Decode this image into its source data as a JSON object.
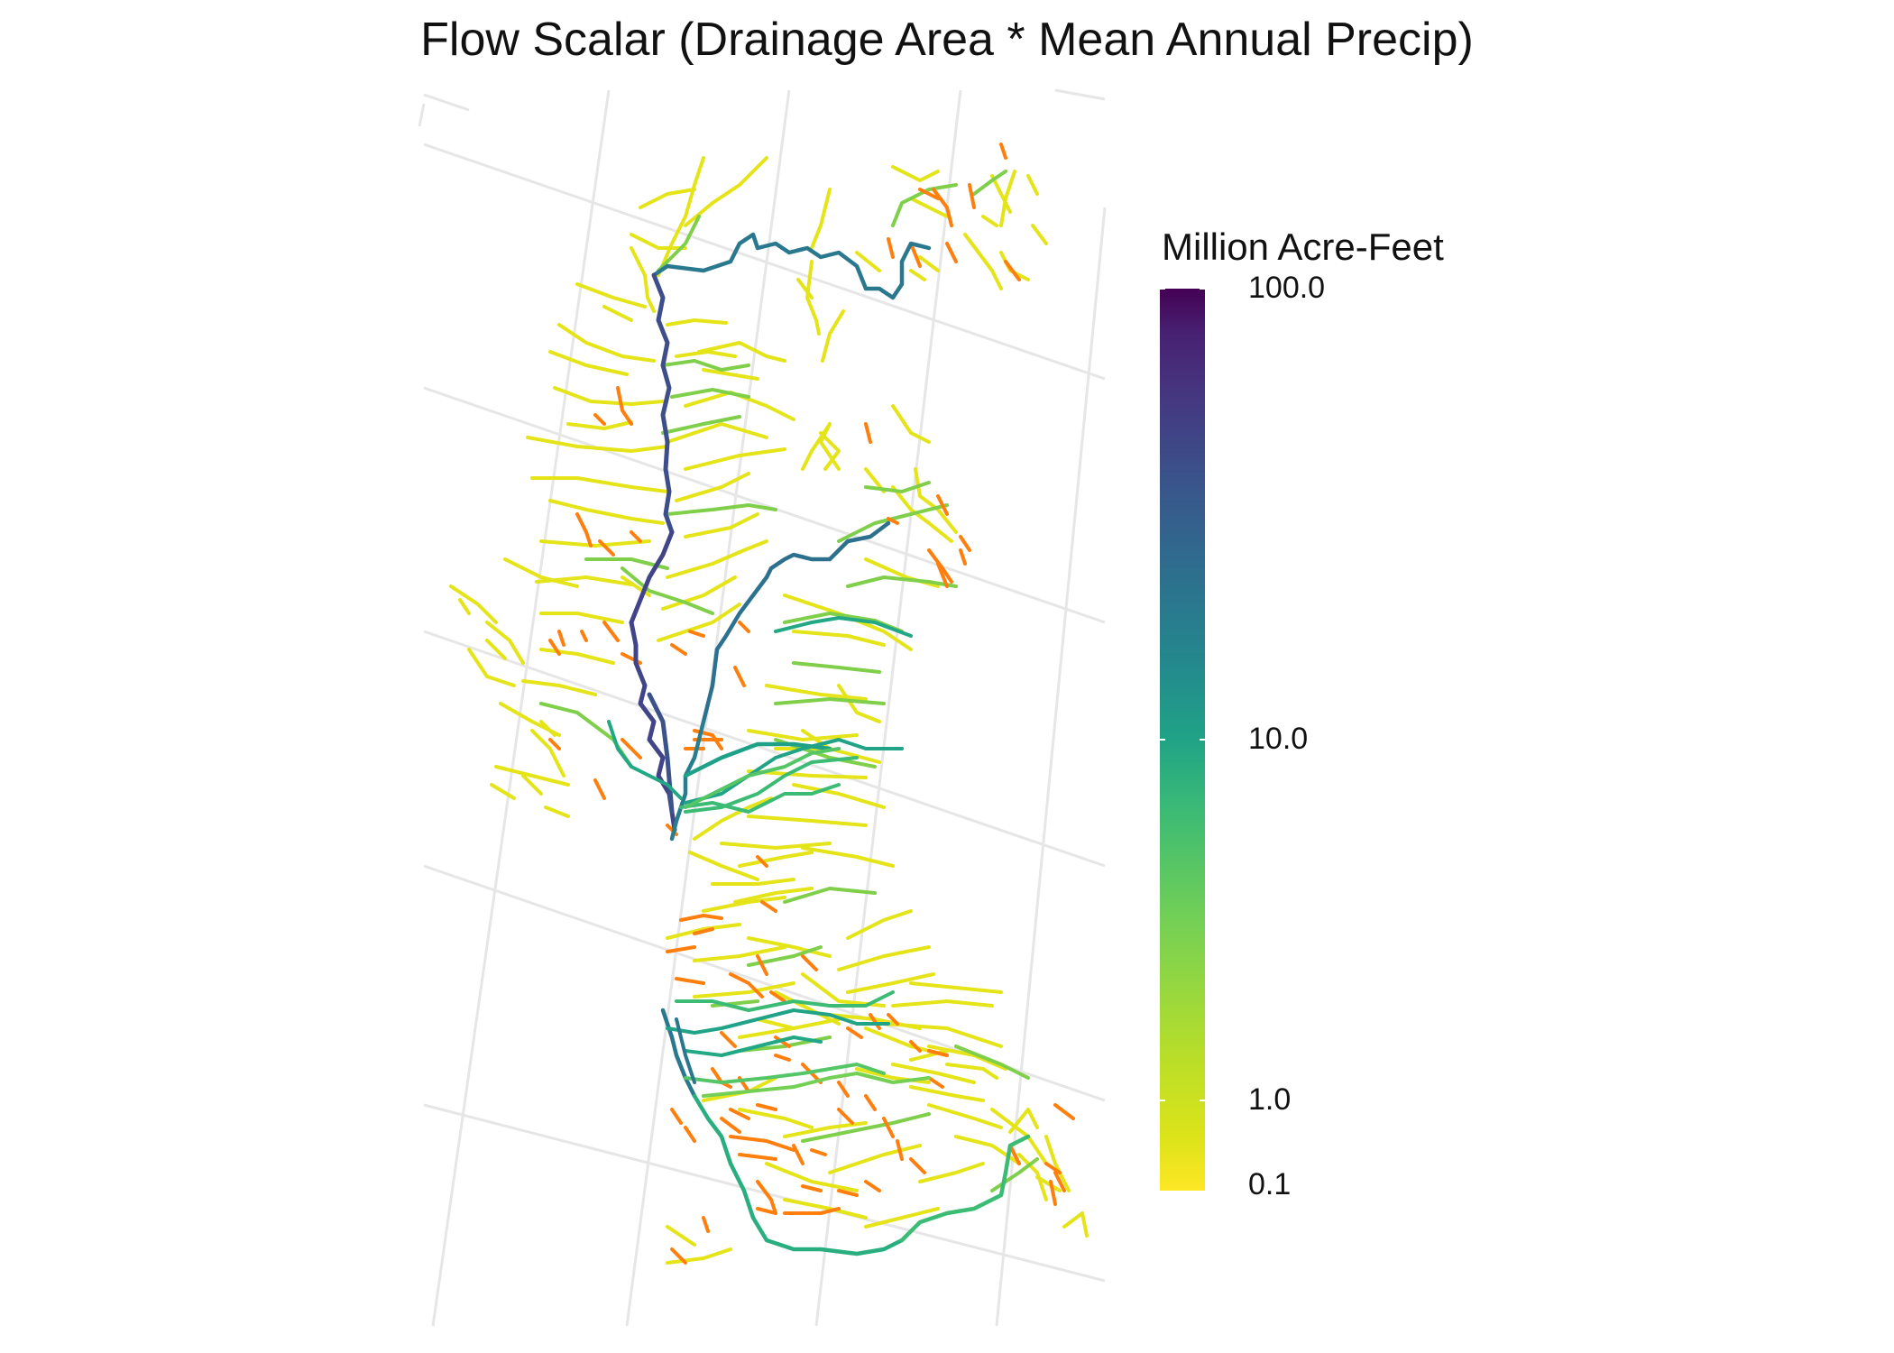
{
  "chart_data": {
    "type": "map",
    "title": "Flow Scalar (Drainage Area * Mean Annual Precip)",
    "legend": {
      "title": "Million Acre-Feet",
      "placement": "right",
      "scale": "sqrt",
      "ticks": [
        "100.0",
        "10.0",
        "1.0",
        "0.1"
      ],
      "range": [
        0.1,
        100
      ],
      "colormap": [
        "#FDE725",
        "#B8DE29",
        "#55C667",
        "#20A386",
        "#287D8E",
        "#39568C",
        "#453781",
        "#440154"
      ]
    },
    "graticule": true,
    "highlight_color": "#FF7F0E"
  }
}
